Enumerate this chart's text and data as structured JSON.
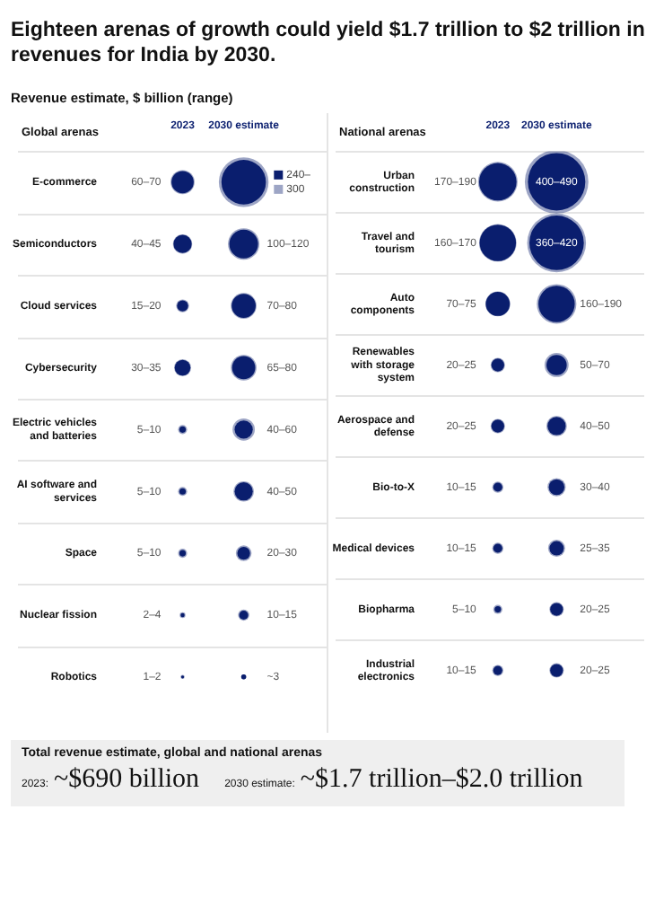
{
  "chart_data": [
    {
      "type": "other",
      "title": "Eighteen arenas of growth could yield $1.7 trillion to $2 trillion in revenues for India by 2030.",
      "subtitle": "Revenue estimate, $ billion (range)",
      "ylabel": "Global arenas",
      "categories": [
        "E-commerce",
        "Semiconductors",
        "Cloud services",
        "Cybersecurity",
        "Electric vehicles and batteries",
        "AI software and services",
        "Space",
        "Nuclear fission",
        "Robotics"
      ],
      "annotations": [
        {
          "text": "300",
          "x": "2030 estimate",
          "y": "E-commerce"
        }
      ],
      "series": [
        {
          "name": "2023",
          "color": "#0b1f6f",
          "values": [
            60,
            40,
            15,
            30,
            5,
            5,
            5,
            2,
            1
          ],
          "value_labels": [
            "60–70",
            "40–45",
            "15–20",
            "30–35",
            "5–10",
            "5–10",
            "5–10",
            "2–4",
            "1–2"
          ]
        },
        {
          "name": "2030 estimate",
          "color": "#0b1f6f",
          "values": [
            240,
            100,
            70,
            65,
            40,
            40,
            20,
            10,
            3
          ],
          "value_labels": [
            "240–",
            "100–120",
            "70–80",
            "65–80",
            "40–60",
            "40–50",
            "20–30",
            "10–15",
            "~3"
          ]
        }
      ]
    },
    {
      "type": "other",
      "ylabel": "National arenas",
      "categories": [
        "Urban construction",
        "Travel and tourism",
        "Auto components",
        "Renewables with storage system",
        "Aerospace and defense",
        "Bio-to-X",
        "Medical devices",
        "Biopharma",
        "Industrial electronics"
      ],
      "series": [
        {
          "name": "2023",
          "color": "#0b1f6f",
          "values": [
            170,
            160,
            70,
            20,
            20,
            10,
            10,
            5,
            10
          ],
          "value_labels": [
            "170–190",
            "160–170",
            "70–75",
            "20–25",
            "20–25",
            "10–15",
            "10–15",
            "5–10",
            "10–15"
          ]
        },
        {
          "name": "2030 estimate",
          "color": "#0b1f6f",
          "values": [
            400,
            360,
            160,
            50,
            40,
            30,
            25,
            20,
            20
          ],
          "value_labels": [
            "400–490",
            "360–420",
            "160–190",
            "50–70",
            "40–50",
            "30–40",
            "25–35",
            "20–25",
            "20–25"
          ]
        }
      ]
    },
    {
      "type": "other",
      "title": "Total revenue estimate, global and national arenas",
      "annotations": [
        "2023:",
        "~$690 billion",
        "2030 estimate:",
        "~$1.7 trillion–$2.0 trillion"
      ]
    }
  ]
}
